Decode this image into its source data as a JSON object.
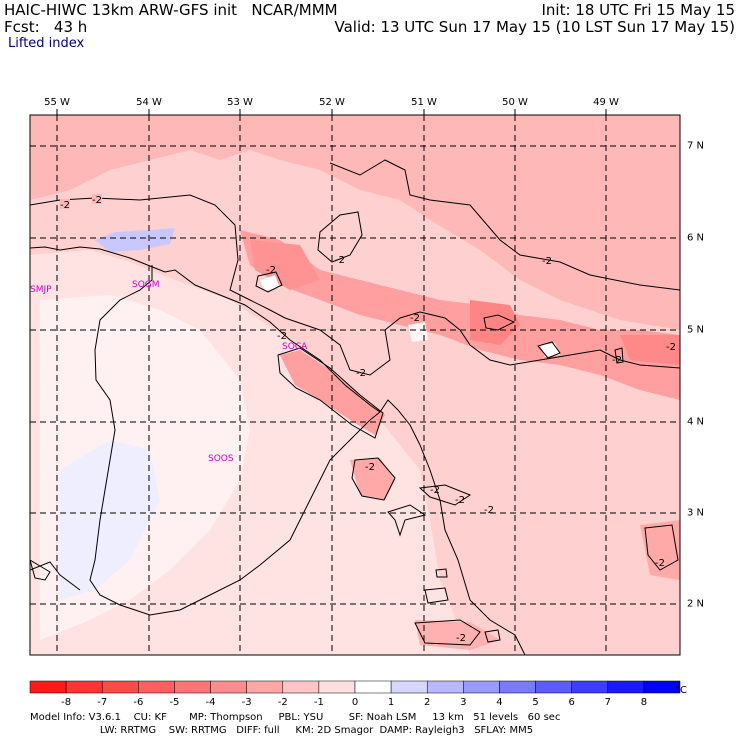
{
  "header": {
    "line1_left": "HAIC-HIWC 13km ARW-GFS init   NCAR/MMM",
    "line1_right": "Init: 18 UTC Fri 15 May 15",
    "line2_left": "Fcst:   43 h",
    "line2_right": "Valid: 13 UTC Sun 17 May 15 (10 LST Sun 17 May 15)",
    "field": "Lifted index"
  },
  "map": {
    "longitudes": [
      "55 W",
      "54 W",
      "53 W",
      "52 W",
      "51 W",
      "50 W",
      "49 W"
    ],
    "latitudes": [
      "7 N",
      "6 N",
      "5 N",
      "4 N",
      "3 N",
      "2 N"
    ],
    "stations": [
      "SMJP",
      "SOGM",
      "SOCA",
      "SOOS"
    ],
    "contour_labels": [
      "-2",
      "-2",
      "-2",
      "-2",
      "-2",
      "-2",
      "-2",
      "-2",
      "-2",
      "-2",
      "-2",
      "-2",
      "-2",
      "-2",
      "-2",
      "-2"
    ]
  },
  "colorbar": {
    "values": [
      "-8",
      "-7",
      "-6",
      "-5",
      "-4",
      "-3",
      "-2",
      "-1",
      "0",
      "1",
      "2",
      "3",
      "4",
      "5",
      "6",
      "7",
      "8"
    ],
    "unit": "°C",
    "colors": [
      "#ff1a1a",
      "#ff3333",
      "#ff4a4a",
      "#ff5f5f",
      "#ff7575",
      "#ff8c8c",
      "#ffa6a6",
      "#ffc4c4",
      "#ffe0e0",
      "#ffffff",
      "#d6d6ff",
      "#b8b8ff",
      "#9999ff",
      "#7a7aff",
      "#5c5cff",
      "#3d3dff",
      "#1a1aff",
      "#0000ff"
    ]
  },
  "footer": {
    "line1": "Model Info: V3.6.1    CU: KF       MP: Thompson     PBL: YSU        SF: Noah LSM     13 km   51 levels   60 sec",
    "line2": "                      LW: RRTMG    SW: RRTMG   DIFF: full     KM: 2D Smagor  DAMP: Rayleigh3   SFLAY: MM5"
  }
}
